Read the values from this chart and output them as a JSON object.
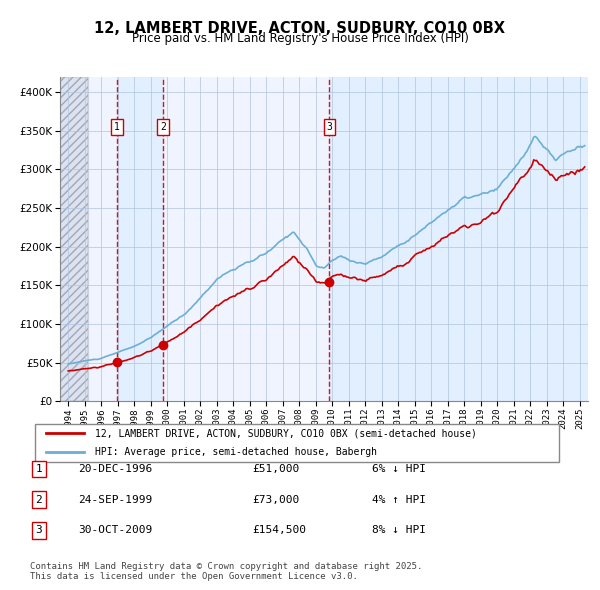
{
  "title": "12, LAMBERT DRIVE, ACTON, SUDBURY, CO10 0BX",
  "subtitle": "Price paid vs. HM Land Registry's House Price Index (HPI)",
  "legend_property": "12, LAMBERT DRIVE, ACTON, SUDBURY, CO10 0BX (semi-detached house)",
  "legend_hpi": "HPI: Average price, semi-detached house, Babergh",
  "transactions": [
    {
      "num": 1,
      "date": "20-DEC-1996",
      "price": 51000,
      "pct": "6%",
      "dir": "↓",
      "x_year": 1996.97
    },
    {
      "num": 2,
      "date": "24-SEP-1999",
      "price": 73000,
      "pct": "4%",
      "dir": "↑",
      "x_year": 1999.73
    },
    {
      "num": 3,
      "date": "30-OCT-2009",
      "price": 154500,
      "pct": "8%",
      "dir": "↓",
      "x_year": 2009.83
    }
  ],
  "footnote": "Contains HM Land Registry data © Crown copyright and database right 2025.\nThis data is licensed under the Open Government Licence v3.0.",
  "hpi_color": "#6baed6",
  "property_color": "#cc0000",
  "transaction_color": "#cc0000",
  "dashed_line_color": "#cc0000",
  "shade_color": "#ddeeff",
  "bg_color": "#f0f4ff",
  "grid_color": "#b0c4de",
  "hatch_color": "#c0c8d8",
  "ylim": [
    0,
    420000
  ],
  "xlim_start": 1993.5,
  "xlim_end": 2025.5
}
